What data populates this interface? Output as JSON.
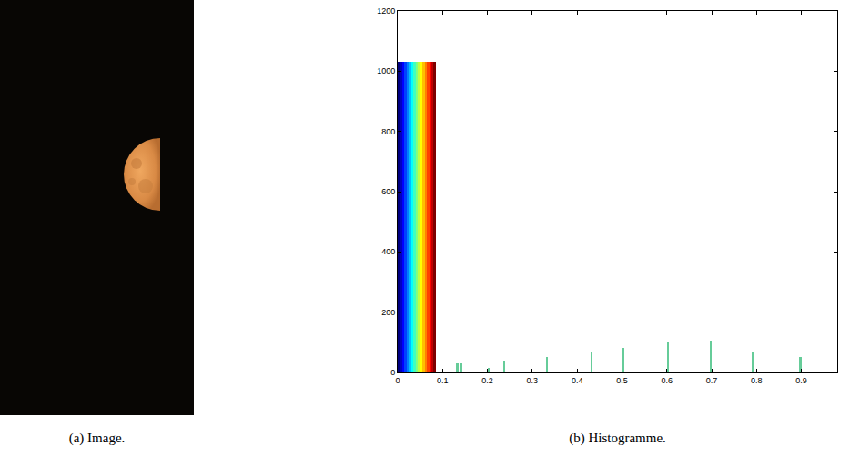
{
  "image": {
    "caption": "(a) Image."
  },
  "chart_data": {
    "type": "histogram",
    "caption": "(b) Histogramme.",
    "bins": [
      0,
      0.005,
      0.01,
      0.015,
      0.02,
      0.025,
      0.03,
      0.035,
      0.04,
      0.045,
      0.05,
      0.055,
      0.06,
      0.065,
      0.07,
      0.075,
      0.08,
      0.085,
      0.13,
      0.135,
      0.14,
      0.145,
      0.2,
      0.205,
      0.235,
      0.24,
      0.33,
      0.335,
      0.43,
      0.435,
      0.5,
      0.505,
      0.6,
      0.605,
      0.695,
      0.7,
      0.79,
      0.795,
      0.895,
      0.9
    ],
    "counts": [
      1030,
      1030,
      1030,
      1030,
      1030,
      1030,
      1030,
      1030,
      1030,
      1030,
      1030,
      1030,
      1030,
      1030,
      1030,
      1030,
      1030,
      0,
      30,
      0,
      30,
      0,
      15,
      0,
      40,
      0,
      50,
      0,
      70,
      0,
      80,
      0,
      100,
      0,
      105,
      0,
      70,
      0,
      50
    ],
    "colors": [
      "#000080",
      "#0000bf",
      "#0000ff",
      "#0040ff",
      "#0080ff",
      "#00bfff",
      "#00ffff",
      "#40ffbf",
      "#80ff80",
      "#bfff40",
      "#ffff00",
      "#ffbf00",
      "#ff8000",
      "#ff4000",
      "#ff0000",
      "#bf0000",
      "#800000",
      "#66cc99",
      "#66cc99",
      "#66cc99",
      "#66cc99",
      "#66cc99",
      "#66cc99",
      "#66cc99",
      "#66cc99",
      "#66cc99",
      "#66cc99",
      "#66cc99",
      "#66cc99",
      "#66cc99",
      "#66cc99",
      "#66cc99",
      "#66cc99",
      "#66cc99",
      "#66cc99",
      "#66cc99",
      "#66cc99",
      "#66cc99",
      "#66cc99"
    ],
    "xlim": [
      0,
      0.98
    ],
    "xticks": [
      0,
      0.1,
      0.2,
      0.3,
      0.4,
      0.5,
      0.6,
      0.7,
      0.8,
      0.9
    ],
    "ylim": [
      0,
      1200
    ],
    "yticks": [
      0,
      200,
      400,
      600,
      800,
      1000,
      1200
    ],
    "grid": false
  }
}
